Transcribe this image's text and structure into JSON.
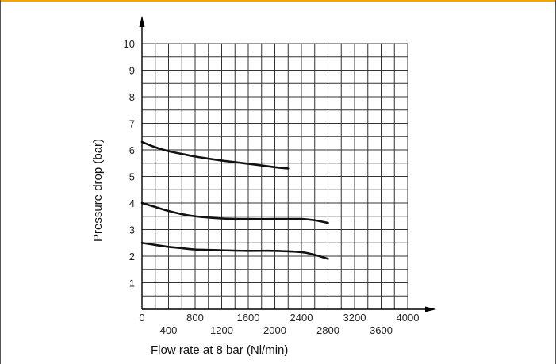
{
  "chart_data": {
    "type": "line",
    "xlabel": "Flow rate at 8 bar (Nl/min)",
    "ylabel": "Pressure drop (bar)",
    "xlim": [
      0,
      4000
    ],
    "ylim": [
      0,
      10
    ],
    "x_ticks_low": [
      "400",
      "1200",
      "2000",
      "2800",
      "3600"
    ],
    "x_ticks_high": [
      "0",
      "800",
      "1600",
      "2400",
      "3200",
      "4000"
    ],
    "y_ticks": [
      "1",
      "2",
      "3",
      "4",
      "5",
      "6",
      "7",
      "8",
      "9",
      "10"
    ],
    "grid": true,
    "series": [
      {
        "x": [
          0,
          200,
          400,
          600,
          800,
          1200,
          1600,
          2000,
          2200
        ],
        "y": [
          6.3,
          6.1,
          5.95,
          5.85,
          5.75,
          5.6,
          5.48,
          5.35,
          5.3
        ]
      },
      {
        "x": [
          0,
          200,
          400,
          600,
          800,
          1200,
          1600,
          2000,
          2400,
          2600,
          2800
        ],
        "y": [
          4.0,
          3.85,
          3.7,
          3.58,
          3.5,
          3.42,
          3.4,
          3.4,
          3.4,
          3.35,
          3.25
        ]
      },
      {
        "x": [
          0,
          200,
          400,
          600,
          800,
          1200,
          1600,
          2000,
          2400,
          2600,
          2800
        ],
        "y": [
          2.5,
          2.42,
          2.35,
          2.3,
          2.25,
          2.22,
          2.2,
          2.2,
          2.15,
          2.05,
          1.9
        ]
      }
    ]
  }
}
